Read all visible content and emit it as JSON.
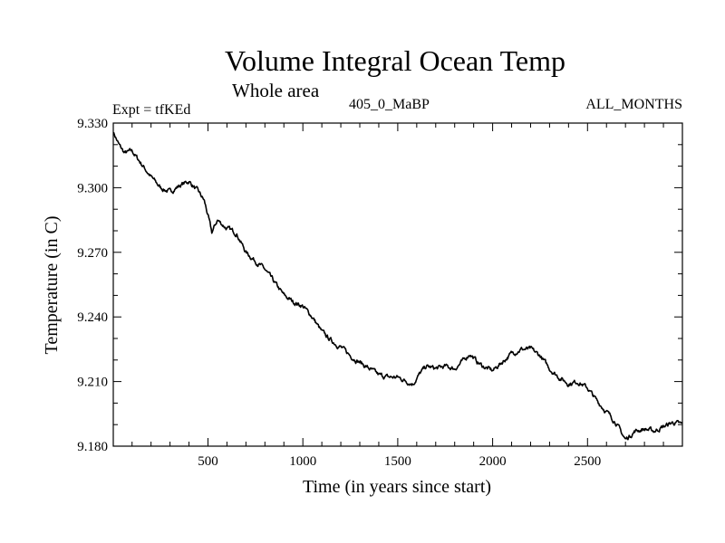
{
  "chart_data": {
    "type": "line",
    "title": "Volume Integral Ocean Temp",
    "subtitle": "Whole area",
    "experiment": "Expt = tfKEd",
    "run": "405_0_MaBP",
    "season": "ALL_MONTHS",
    "xlabel": "Time (in years since start)",
    "ylabel": "Temperature (in C)",
    "xlim": [
      1,
      3000
    ],
    "ylim": [
      9.18,
      9.33
    ],
    "x_ticks": [
      500,
      1000,
      1500,
      2000,
      2500
    ],
    "y_ticks": [
      "9.180",
      "9.210",
      "9.240",
      "9.270",
      "9.300",
      "9.330"
    ],
    "grid": false,
    "line_color": "#000000",
    "series": [
      {
        "x": [
          1,
          30,
          60,
          100,
          150,
          200,
          250,
          300,
          350,
          400,
          450,
          480,
          500,
          520,
          550,
          600,
          650,
          700,
          750,
          800,
          850,
          900,
          950,
          1000,
          1050,
          1100,
          1150,
          1200,
          1250,
          1300,
          1350,
          1400,
          1450,
          1500,
          1550,
          1580,
          1620,
          1650,
          1700,
          1750,
          1800,
          1850,
          1880,
          1920,
          1950,
          2000,
          2050,
          2100,
          2150,
          2200,
          2250,
          2300,
          2350,
          2400,
          2450,
          2500,
          2550,
          2600,
          2650,
          2680,
          2700,
          2750,
          2800,
          2850,
          2900,
          2950,
          3000
        ],
        "y": [
          9.326,
          9.32,
          9.316,
          9.317,
          9.311,
          9.305,
          9.3,
          9.298,
          9.301,
          9.303,
          9.298,
          9.294,
          9.287,
          9.279,
          9.285,
          9.281,
          9.279,
          9.27,
          9.266,
          9.262,
          9.256,
          9.25,
          9.247,
          9.245,
          9.24,
          9.233,
          9.229,
          9.226,
          9.222,
          9.219,
          9.216,
          9.213,
          9.212,
          9.212,
          9.21,
          9.209,
          9.214,
          9.217,
          9.216,
          9.217,
          9.216,
          9.22,
          9.223,
          9.219,
          9.217,
          9.215,
          9.219,
          9.223,
          9.225,
          9.225,
          9.222,
          9.216,
          9.212,
          9.209,
          9.21,
          9.207,
          9.201,
          9.196,
          9.191,
          9.186,
          9.183,
          9.187,
          9.188,
          9.187,
          9.189,
          9.191,
          9.19
        ]
      }
    ]
  }
}
